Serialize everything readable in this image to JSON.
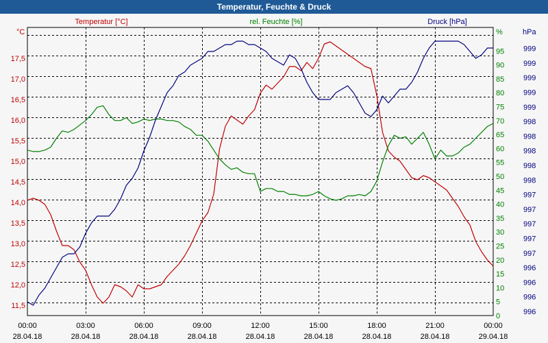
{
  "window": {
    "title": "Temperatur, Feuchte & Druck"
  },
  "colors": {
    "temperature": "#c00000",
    "humidity": "#008000",
    "pressure": "#000080",
    "grid": "#000000",
    "titlebar": "#1f5a97",
    "background": "#f6f6f6"
  },
  "chart_data": {
    "type": "line",
    "title": "Temperatur, Feuchte & Druck",
    "grid": true,
    "x_ticks": [
      {
        "time": "00:00",
        "date": "28.04.18"
      },
      {
        "time": "03:00",
        "date": "28.04.18"
      },
      {
        "time": "06:00",
        "date": "28.04.18"
      },
      {
        "time": "09:00",
        "date": "28.04.18"
      },
      {
        "time": "12:00",
        "date": "28.04.18"
      },
      {
        "time": "15:00",
        "date": "28.04.18"
      },
      {
        "time": "18:00",
        "date": "28.04.18"
      },
      {
        "time": "21:00",
        "date": "28.04.18"
      },
      {
        "time": "00:00",
        "date": "29.04.18"
      }
    ],
    "x_range_hours": [
      0,
      24
    ],
    "axes": {
      "temperature": {
        "unit": "°C",
        "label": "Temperatur [°C]",
        "range": [
          11.25,
          18.25
        ],
        "ticks": [
          "11,5",
          "12,0",
          "12,5",
          "13,0",
          "13,5",
          "14,0",
          "14,5",
          "15,0",
          "15,5",
          "16,0",
          "16,5",
          "17,0",
          "17,5"
        ]
      },
      "humidity": {
        "unit": "%",
        "label": "rel. Feuchte [%]",
        "range": [
          0,
          97.5
        ],
        "ticks": [
          "0",
          "5",
          "10",
          "15",
          "20",
          "25",
          "30",
          "35",
          "40",
          "45",
          "50",
          "55",
          "60",
          "65",
          "70",
          "75",
          "80",
          "85",
          "90",
          "95"
        ]
      },
      "pressure": {
        "unit": "hPa",
        "label": "Druck [hPa]",
        "range": [
          995.6,
          999.8
        ],
        "ticks": [
          "996",
          "996",
          "996",
          "996",
          "997",
          "997",
          "997",
          "997",
          "997",
          "998",
          "998",
          "998",
          "998",
          "998",
          "999",
          "999",
          "999",
          "999",
          "999"
        ]
      }
    },
    "series": [
      {
        "name": "Temperatur [°C]",
        "axis": "temperature",
        "x": [
          0,
          0.3,
          0.6,
          0.9,
          1.2,
          1.5,
          1.8,
          2.1,
          2.4,
          2.7,
          3.0,
          3.3,
          3.6,
          3.9,
          4.2,
          4.5,
          4.8,
          5.1,
          5.4,
          5.7,
          6.0,
          6.3,
          6.6,
          6.9,
          7.2,
          7.5,
          7.8,
          8.1,
          8.4,
          8.7,
          9.0,
          9.3,
          9.6,
          9.9,
          10.2,
          10.5,
          10.8,
          11.1,
          11.4,
          11.7,
          12.0,
          12.3,
          12.6,
          12.9,
          13.2,
          13.5,
          13.8,
          14.1,
          14.4,
          14.7,
          15.0,
          15.3,
          15.6,
          15.9,
          16.2,
          16.5,
          16.8,
          17.1,
          17.4,
          17.7,
          18.0,
          18.3,
          18.6,
          18.9,
          19.2,
          19.5,
          19.8,
          20.1,
          20.4,
          20.7,
          21.0,
          21.3,
          21.6,
          21.9,
          22.2,
          22.5,
          22.8,
          23.1,
          23.4,
          23.7,
          24.0
        ],
        "values": [
          14.05,
          14.1,
          14.05,
          13.95,
          13.7,
          13.3,
          12.95,
          12.95,
          12.85,
          12.55,
          12.35,
          12.0,
          11.7,
          11.55,
          11.7,
          12.0,
          11.95,
          11.85,
          11.7,
          12.0,
          11.9,
          11.9,
          11.95,
          12.0,
          12.2,
          12.35,
          12.5,
          12.7,
          12.95,
          13.25,
          13.55,
          13.75,
          14.2,
          15.3,
          15.85,
          16.1,
          16.0,
          15.9,
          16.1,
          16.25,
          16.65,
          16.85,
          16.75,
          16.9,
          17.05,
          17.3,
          17.3,
          17.2,
          17.4,
          17.25,
          17.5,
          17.85,
          17.9,
          17.8,
          17.7,
          17.6,
          17.5,
          17.4,
          17.3,
          17.25,
          16.6,
          15.7,
          15.25,
          15.1,
          15.0,
          14.8,
          14.6,
          14.55,
          14.65,
          14.6,
          14.5,
          14.4,
          14.3,
          14.1,
          13.9,
          13.65,
          13.45,
          13.05,
          12.8,
          12.6,
          12.45
        ]
      },
      {
        "name": "rel. Feuchte [%]",
        "axis": "humidity",
        "x": [
          0,
          0.3,
          0.6,
          0.9,
          1.2,
          1.5,
          1.8,
          2.1,
          2.4,
          2.7,
          3.0,
          3.3,
          3.6,
          3.9,
          4.2,
          4.5,
          4.8,
          5.1,
          5.4,
          5.7,
          6.0,
          6.3,
          6.6,
          6.9,
          7.2,
          7.5,
          7.8,
          8.1,
          8.4,
          8.7,
          9.0,
          9.3,
          9.6,
          9.9,
          10.2,
          10.5,
          10.8,
          11.1,
          11.4,
          11.7,
          12.0,
          12.3,
          12.6,
          12.9,
          13.2,
          13.5,
          13.8,
          14.1,
          14.4,
          14.7,
          15.0,
          15.3,
          15.6,
          15.9,
          16.2,
          16.5,
          16.8,
          17.1,
          17.4,
          17.7,
          18.0,
          18.3,
          18.6,
          18.9,
          19.2,
          19.5,
          19.8,
          20.1,
          20.4,
          20.7,
          21.0,
          21.3,
          21.6,
          21.9,
          22.2,
          22.5,
          22.8,
          23.1,
          23.4,
          23.7,
          24.0
        ],
        "values": [
          56,
          55.5,
          55.5,
          56,
          57,
          60,
          62.5,
          62,
          63,
          64.5,
          66,
          68,
          70.5,
          71,
          68,
          66,
          66,
          67,
          65,
          65.5,
          66.5,
          66,
          66.5,
          66.5,
          66,
          66,
          65.5,
          64,
          63,
          61,
          61,
          59,
          56,
          53,
          51,
          49.5,
          50,
          48.5,
          48,
          48,
          42,
          43,
          43,
          42,
          42,
          41,
          41,
          40.5,
          40.5,
          41,
          42,
          40.5,
          39.5,
          39,
          39.5,
          40.5,
          40.5,
          41,
          40.5,
          42,
          45.5,
          52,
          57.5,
          61,
          60,
          60.5,
          58,
          60,
          62,
          58,
          53,
          56,
          54,
          54,
          55,
          57,
          58,
          60,
          62,
          64,
          65
        ]
      },
      {
        "name": "Druck [hPa]",
        "axis": "pressure",
        "x": [
          0,
          0.3,
          0.6,
          0.9,
          1.2,
          1.5,
          1.8,
          2.1,
          2.4,
          2.7,
          3.0,
          3.3,
          3.6,
          3.9,
          4.2,
          4.5,
          4.8,
          5.1,
          5.4,
          5.7,
          6.0,
          6.3,
          6.6,
          6.9,
          7.2,
          7.5,
          7.8,
          8.1,
          8.4,
          8.7,
          9.0,
          9.3,
          9.6,
          9.9,
          10.2,
          10.5,
          10.8,
          11.1,
          11.4,
          11.7,
          12.0,
          12.3,
          12.6,
          12.9,
          13.2,
          13.5,
          13.8,
          14.1,
          14.4,
          14.7,
          15.0,
          15.3,
          15.6,
          15.9,
          16.2,
          16.5,
          16.8,
          17.1,
          17.4,
          17.7,
          18.0,
          18.3,
          18.6,
          18.9,
          19.2,
          19.5,
          19.8,
          20.1,
          20.4,
          20.7,
          21.0,
          21.3,
          21.6,
          21.9,
          22.2,
          22.5,
          22.8,
          23.1,
          23.4,
          23.7,
          24.0
        ],
        "values": [
          995.8,
          995.75,
          995.9,
          996.0,
          996.15,
          996.3,
          996.45,
          996.5,
          996.5,
          996.6,
          996.8,
          996.95,
          997.05,
          997.05,
          997.05,
          997.15,
          997.3,
          997.5,
          997.6,
          997.75,
          998.0,
          998.2,
          998.45,
          998.65,
          998.85,
          998.95,
          999.1,
          999.15,
          999.25,
          999.3,
          999.35,
          999.45,
          999.45,
          999.5,
          999.55,
          999.55,
          999.6,
          999.6,
          999.55,
          999.55,
          999.5,
          999.45,
          999.35,
          999.3,
          999.25,
          999.4,
          999.35,
          999.2,
          999.0,
          998.85,
          998.75,
          998.75,
          998.75,
          998.85,
          998.9,
          998.95,
          998.85,
          998.7,
          998.55,
          998.5,
          998.6,
          998.8,
          998.7,
          998.8,
          998.9,
          998.9,
          999.0,
          999.15,
          999.35,
          999.5,
          999.6,
          999.6,
          999.6,
          999.6,
          999.6,
          999.55,
          999.45,
          999.35,
          999.4,
          999.5,
          999.5
        ]
      }
    ]
  }
}
